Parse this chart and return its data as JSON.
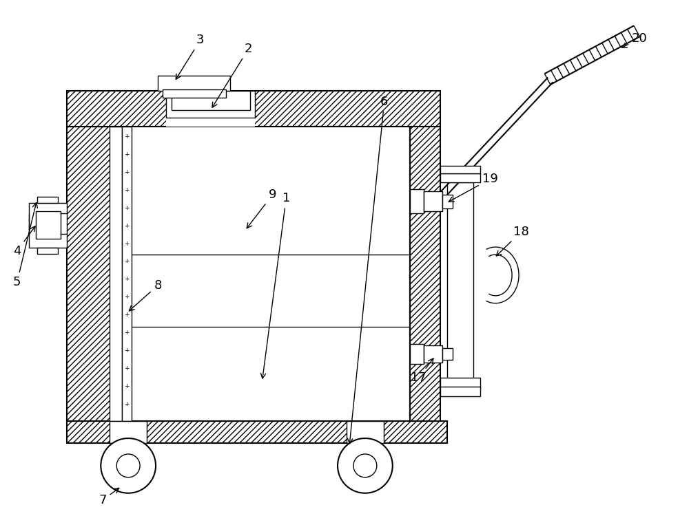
{
  "bg_color": "#ffffff",
  "line_color": "#000000",
  "figsize": [
    10.0,
    7.5
  ],
  "dpi": 100,
  "lw_main": 1.5,
  "lw_thin": 1.0,
  "hatch_density": "////",
  "label_fontsize": 13
}
